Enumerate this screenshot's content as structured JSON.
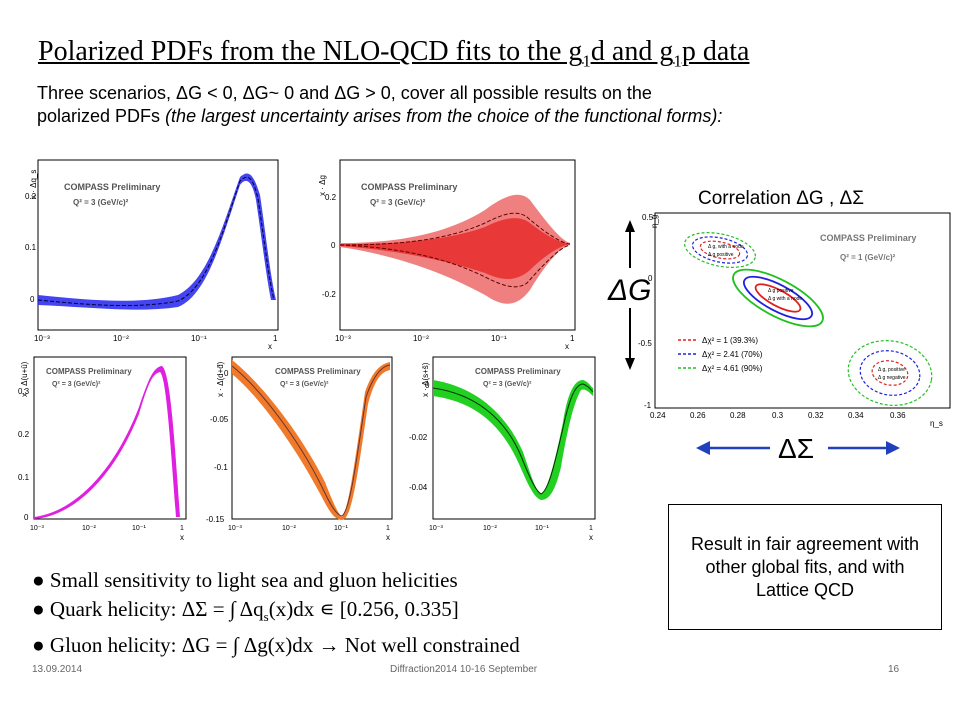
{
  "title": {
    "main": "Polarized PDFs from the NLO-QCD fits to the g",
    "sub1": "1",
    "mid": "d and g",
    "sub2": "1",
    "end": "p data"
  },
  "intro": {
    "line1": "Three scenarios, ΔG < 0, ΔG~ 0 and ΔG > 0, cover all possible results on the",
    "line2_prefix": "polarized PDFs ",
    "line2_italic": "(the largest uncertainty arises from the choice of the functional forms):"
  },
  "plots": {
    "prelim": "COMPASS Preliminary",
    "q2": "Q² = 3 (GeV/c)²",
    "x_axis_label": "x",
    "x_ticks": [
      "10⁻³",
      "10⁻²",
      "10⁻¹",
      "1"
    ],
    "p1": {
      "ylabel": "x · Δq_s",
      "yticks": [
        "0.2",
        "0.1",
        "0"
      ]
    },
    "p2": {
      "ylabel": "x · Δg",
      "yticks": [
        "0.2",
        "0",
        "-0.2"
      ]
    },
    "p3": {
      "ylabel": "x · Δ(u+ū)",
      "yticks": [
        "0.3",
        "0.2",
        "0.1",
        "0"
      ]
    },
    "p4": {
      "ylabel": "x · Δ(d+d̄)",
      "yticks": [
        "0",
        "-0.05",
        "-0.1",
        "-0.15"
      ]
    },
    "p5": {
      "ylabel": "x · Δ(s+s̄)",
      "yticks": [
        "0",
        "-0.02",
        "-0.04"
      ]
    }
  },
  "correlation": {
    "title": "Correlation  ΔG , ΔΣ",
    "prelim": "COMPASS Preliminary",
    "q2": "Q² = 1 (GeV/c)²",
    "y_big": "ΔG",
    "x_big": "ΔΣ",
    "y_axis": "η_g",
    "x_axis": "η_s",
    "yticks": [
      "0.5",
      "0",
      "-0.5",
      "-1"
    ],
    "xticks": [
      "0.24",
      "0.26",
      "0.28",
      "0.3",
      "0.32",
      "0.34",
      "0.36"
    ],
    "legend": [
      "Δχ² = 1 (39.3%)",
      "Δχ² = 2.41 (70%)",
      "Δχ² = 4.61 (90%)"
    ],
    "labels": {
      "top": [
        "Δ g, with a node",
        "Δ g positive"
      ],
      "mid": [
        "Δ g positive",
        "Δ g with a node"
      ],
      "bot": [
        "Δ g, positive",
        "Δ g negative"
      ]
    },
    "colors": {
      "red": "#e02020",
      "blue": "#2020e0",
      "green": "#20c020"
    }
  },
  "bullets": [
    "● Small sensitivity to light sea and gluon helicities",
    "● Quark helicity: ΔΣ = ∫ Δq",
    "● Gluon helicity: ΔG = ∫ Δg(x)dx → Not well constrained"
  ],
  "bullet2_sub": "s",
  "bullet2_tail": "(x)dx ∊ [0.256, 0.335]",
  "box": "Result  in fair agreement with other global fits, and with Lattice QCD",
  "footer": {
    "date": "13.09.2014",
    "event": "Diffraction2014 10-16 September",
    "page": "16"
  },
  "colors": {
    "blue": "#2d2df0",
    "red": "#e83030",
    "magenta": "#e020e0",
    "orange": "#f07020",
    "green": "#20d020"
  }
}
